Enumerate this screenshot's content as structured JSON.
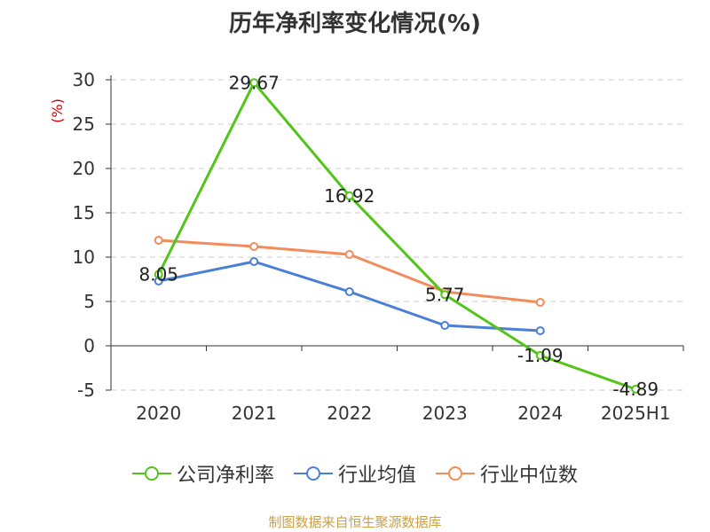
{
  "title": "历年净利率变化情况(%)",
  "footer": "制图数据来自恒生聚源数据库",
  "colors": {
    "axis": "#333333",
    "grid": "#cccccc",
    "ylabel": "#cc0000"
  },
  "chart_data": {
    "type": "line",
    "title": "历年净利率变化情况(%)",
    "ylabel": "(%)",
    "ylim": [
      -5,
      30
    ],
    "yticks": [
      -5,
      0,
      5,
      10,
      15,
      20,
      25,
      30
    ],
    "categories": [
      "2020",
      "2021",
      "2022",
      "2023",
      "2024",
      "2025H1"
    ],
    "grid": true,
    "legend_position": "bottom",
    "series": [
      {
        "name": "公司净利率",
        "color": "#52c41a",
        "values": [
          8.05,
          29.67,
          16.92,
          5.77,
          -1.09,
          -4.89
        ],
        "labels": [
          "8.05",
          "29.67",
          "16.92",
          "5.77",
          "-1.09",
          "-4.89"
        ]
      },
      {
        "name": "行业均值",
        "color": "#4a7fd6",
        "values": [
          7.3,
          9.5,
          6.1,
          2.3,
          1.7,
          null
        ]
      },
      {
        "name": "行业中位数",
        "color": "#f28c5a",
        "values": [
          11.9,
          11.2,
          10.3,
          6.1,
          4.9,
          null
        ]
      }
    ]
  }
}
